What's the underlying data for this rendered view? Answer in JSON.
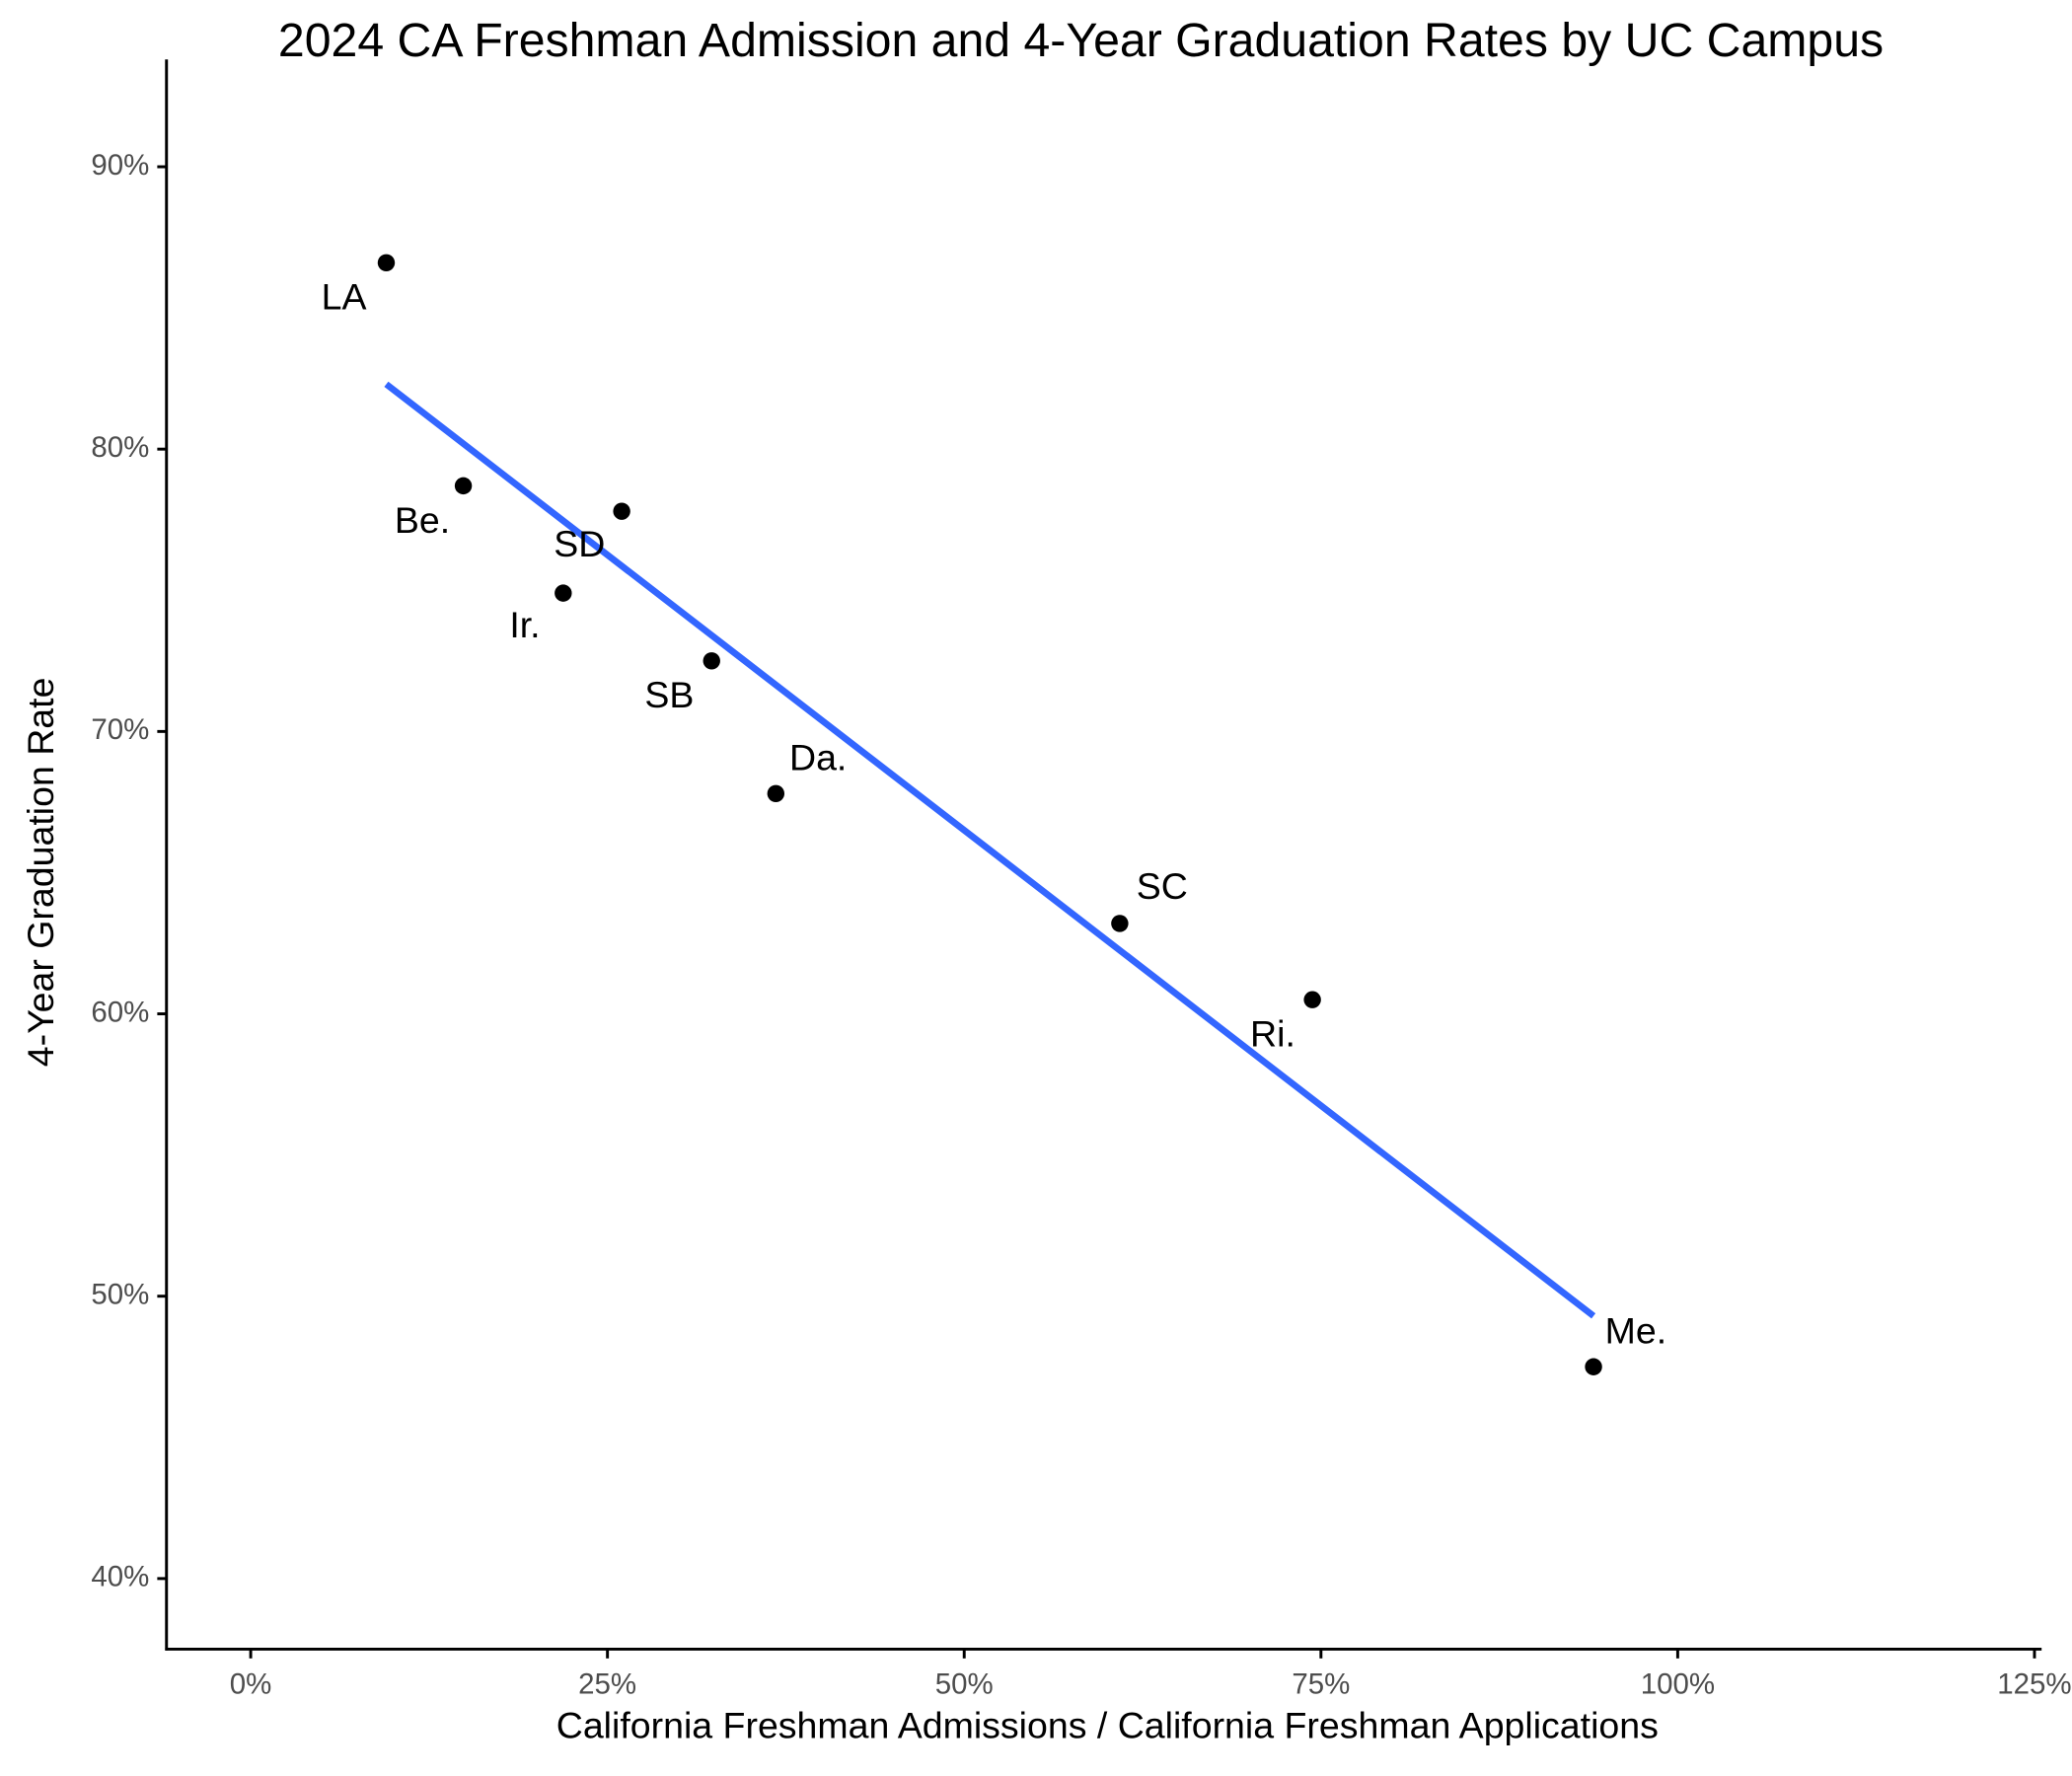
{
  "chart_data": {
    "type": "scatter",
    "title": "2024 CA Freshman Admission and 4-Year Graduation Rates by UC Campus",
    "x_label": "California Freshman Admissions / California Freshman Applications",
    "y_label": "4-Year Graduation Rate",
    "labels": [
      "LA",
      "Be.",
      "SD",
      "Ir.",
      "SB",
      "Da.",
      "SC",
      "Ri.",
      "Me."
    ],
    "x": [
      9.5,
      14.9,
      26.0,
      21.9,
      32.3,
      36.8,
      60.9,
      74.4,
      94.1
    ],
    "values": [
      86.6,
      78.7,
      77.8,
      74.9,
      72.5,
      67.8,
      63.2,
      60.5,
      47.5
    ],
    "color": "#000000",
    "trend": {
      "x": [
        9.5,
        94.1
      ],
      "values": [
        82.3,
        49.3
      ],
      "color": "#3366ff"
    },
    "xlim": [
      -5.9,
      125.5
    ],
    "ylim": [
      37.5,
      93.8
    ],
    "xticks": [
      {
        "value": 0,
        "label": "0%"
      },
      {
        "value": 25,
        "label": "25%"
      },
      {
        "value": 50,
        "label": "50%"
      },
      {
        "value": 75,
        "label": "75%"
      },
      {
        "value": 100,
        "label": "100%"
      },
      {
        "value": 125,
        "label": "125%"
      }
    ],
    "yticks": [
      {
        "value": 40,
        "label": "40%"
      },
      {
        "value": 50,
        "label": "50%"
      },
      {
        "value": 60,
        "label": "60%"
      },
      {
        "value": 70,
        "label": "70%"
      },
      {
        "value": 80,
        "label": "80%"
      },
      {
        "value": 90,
        "label": "90%"
      }
    ],
    "grid": false
  }
}
